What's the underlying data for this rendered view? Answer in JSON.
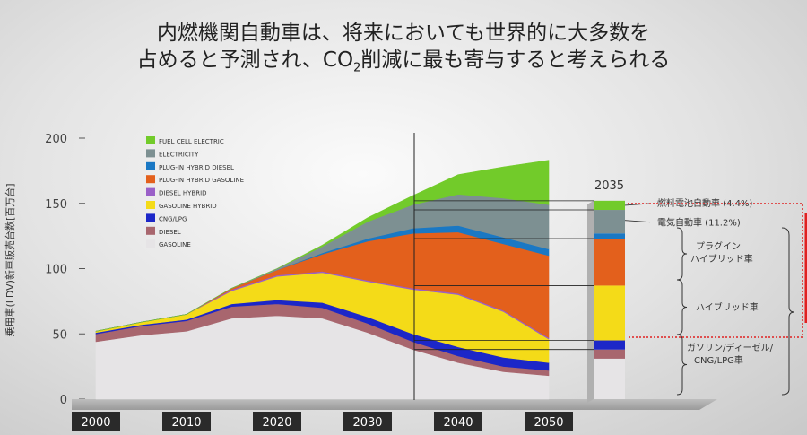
{
  "title": {
    "line1": "内燃機関自動車は、将来においても世界的に大多数を",
    "line2_pre": "占めると予測され、CO",
    "line2_sub": "2",
    "line2_post": "削減に最も寄与すると考えられる"
  },
  "chart_data": {
    "type": "area",
    "ylabel": "乗用車(LDV)新車販売台数[百万台]",
    "ylim": [
      0,
      200
    ],
    "yticks": [
      "0",
      "50",
      "100",
      "150",
      "200"
    ],
    "xticks": [
      "2000",
      "2010",
      "2020",
      "2030",
      "2040",
      "2050"
    ],
    "x": [
      2000,
      2005,
      2010,
      2015,
      2020,
      2025,
      2030,
      2035,
      2040,
      2045,
      2050
    ],
    "series": [
      {
        "name": "GASOLINE",
        "color": "#e6e4e6",
        "values": [
          44,
          49,
          52,
          62,
          64,
          62,
          51,
          38,
          28,
          21,
          18
        ]
      },
      {
        "name": "DIESEL",
        "color": "#a8666e",
        "values": [
          6,
          7,
          8,
          9,
          9,
          8,
          7,
          6,
          5,
          4,
          4
        ]
      },
      {
        "name": "CNG/LPG",
        "color": "#1c27c8",
        "values": [
          1,
          1,
          1,
          2,
          3,
          4,
          5,
          6,
          7,
          7,
          6
        ]
      },
      {
        "name": "GASOLINE HYBRID",
        "color": "#f4db18",
        "values": [
          1,
          2,
          4,
          10,
          18,
          23,
          27,
          34,
          40,
          35,
          18
        ]
      },
      {
        "name": "DIESEL HYBRID",
        "color": "#9a60c8",
        "values": [
          0,
          0,
          0,
          1,
          1,
          1,
          1,
          1,
          1,
          1,
          1
        ]
      },
      {
        "name": "PLUG-IN HYBRID GASOLINE",
        "color": "#e3601c",
        "values": [
          0,
          0,
          0,
          1,
          4,
          13,
          30,
          42,
          47,
          51,
          63
        ]
      },
      {
        "name": "PLUG-IN HYBRID DIESEL",
        "color": "#1a78c4",
        "values": [
          0,
          0,
          0,
          0,
          0,
          1,
          2,
          4,
          5,
          5,
          5
        ]
      },
      {
        "name": "ELECTRICITY",
        "color": "#7d9092",
        "values": [
          0,
          0,
          0,
          0,
          1,
          5,
          13,
          18,
          24,
          30,
          34
        ]
      },
      {
        "name": "FUEL CELL ELECTRIC",
        "color": "#72cb2a",
        "values": [
          0,
          0,
          0,
          0,
          0,
          1,
          3,
          7,
          15,
          24,
          34
        ]
      }
    ],
    "bar_2035": {
      "label": "2035",
      "segments": [
        {
          "name": "GASOLINE",
          "color": "#e6e4e6",
          "value": 31
        },
        {
          "name": "DIESEL",
          "color": "#a8666e",
          "value": 7
        },
        {
          "name": "CNG/LPG",
          "color": "#1c27c8",
          "value": 7
        },
        {
          "name": "GASOLINE HYBRID",
          "color": "#f4db18",
          "value": 42
        },
        {
          "name": "PLUG-IN HYBRID GASOLINE",
          "color": "#e3601c",
          "value": 36
        },
        {
          "name": "PLUG-IN HYBRID DIESEL",
          "color": "#1a78c4",
          "value": 4
        },
        {
          "name": "ELECTRICITY",
          "color": "#7d9092",
          "value": 18
        },
        {
          "name": "FUEL CELL ELECTRIC",
          "color": "#72cb2a",
          "value": 7
        }
      ]
    },
    "annotations": {
      "fuel_cell": "燃料電池自動車 (4.4%)",
      "electric": "電気自動車 (11.2%)",
      "plugin": [
        "プラグイン",
        "ハイブリッド車"
      ],
      "hybrid": "ハイブリッド車",
      "ice": [
        "ガソリン/ディーゼル/",
        "CNG/LPG車"
      ]
    },
    "grid": false,
    "legend_position": "top-left"
  }
}
